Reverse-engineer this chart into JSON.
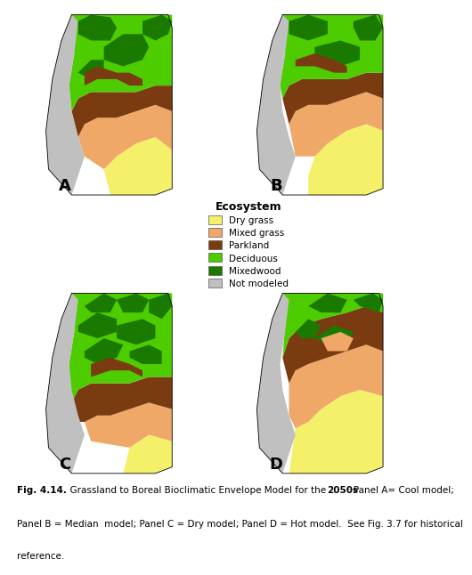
{
  "panel_labels": [
    "A",
    "B",
    "C",
    "D"
  ],
  "legend_title": "Ecosystem",
  "legend_items": [
    {
      "label": "Dry grass",
      "color": "#F5F06A"
    },
    {
      "label": "Mixed grass",
      "color": "#F0A868"
    },
    {
      "label": "Parkland",
      "color": "#7B3B10"
    },
    {
      "label": "Deciduous",
      "color": "#4DCC00"
    },
    {
      "label": "Mixedwood",
      "color": "#1A7A00"
    },
    {
      "label": "Not modeled",
      "color": "#C0C0C0"
    }
  ],
  "bg_color": "#FFFFFF",
  "map_colors": {
    "dry_grass": "#F5F06A",
    "mixed_grass": "#F0A868",
    "parkland": "#7B3B10",
    "deciduous": "#4DCC00",
    "mixedwood": "#1A7A00",
    "not_modeled": "#C0C0C0"
  },
  "caption_parts": [
    {
      "text": "Fig. 4.14.",
      "bold": true
    },
    {
      "text": "  Grassland to Boreal Bioclimatic Envelope Model for the ",
      "bold": false
    },
    {
      "text": "2050s",
      "bold": true
    },
    {
      "text": ": Panel A= Cool model;\nPanel B = Median  model; Panel C = Dry model; Panel D = Hot model.  See Fig. 3.7 for historical\nreference.",
      "bold": false
    }
  ]
}
